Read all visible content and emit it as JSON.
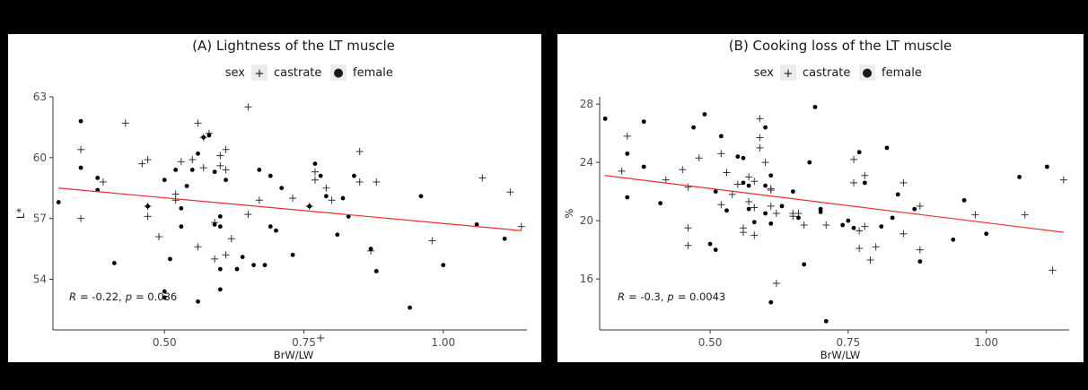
{
  "chart_data": [
    {
      "type": "scatter",
      "title": "(A) Lightness of the LT muscle",
      "xlabel": "BrW/LW",
      "ylabel": "L*",
      "xlim": [
        0.3,
        1.15
      ],
      "ylim": [
        51.5,
        63
      ],
      "xticks": [
        "0.50",
        "0.75",
        "1.00"
      ],
      "xtick_values": [
        0.5,
        0.75,
        1.0
      ],
      "yticks": [
        "54",
        "57",
        "60",
        "63"
      ],
      "ytick_values": [
        54,
        57,
        60,
        63
      ],
      "grid": false,
      "legend": {
        "title": "sex",
        "placement": "top",
        "items": [
          {
            "label": "castrate",
            "marker": "+"
          },
          {
            "label": "female",
            "marker": "●"
          }
        ]
      },
      "annotation": {
        "r_label": "R",
        "r_value": "= -0.22,",
        "p_label": "p",
        "p_value": "= 0.036"
      },
      "regression": {
        "color": "#ee2c2c",
        "x": [
          0.31,
          1.14
        ],
        "y": [
          58.5,
          56.4
        ]
      },
      "series": [
        {
          "name": "castrate",
          "marker": "+",
          "points": [
            [
              0.35,
              57.0
            ],
            [
              0.35,
              60.4
            ],
            [
              0.39,
              58.8
            ],
            [
              0.43,
              61.7
            ],
            [
              0.46,
              59.7
            ],
            [
              0.47,
              59.9
            ],
            [
              0.47,
              57.6
            ],
            [
              0.47,
              57.1
            ],
            [
              0.49,
              56.1
            ],
            [
              0.52,
              58.2
            ],
            [
              0.52,
              57.9
            ],
            [
              0.53,
              59.8
            ],
            [
              0.55,
              59.9
            ],
            [
              0.56,
              55.6
            ],
            [
              0.56,
              61.7
            ],
            [
              0.57,
              59.5
            ],
            [
              0.57,
              61.0
            ],
            [
              0.58,
              61.2
            ],
            [
              0.59,
              56.8
            ],
            [
              0.59,
              55.0
            ],
            [
              0.6,
              59.6
            ],
            [
              0.6,
              60.1
            ],
            [
              0.61,
              60.4
            ],
            [
              0.61,
              59.4
            ],
            [
              0.61,
              55.2
            ],
            [
              0.62,
              56.0
            ],
            [
              0.65,
              62.5
            ],
            [
              0.65,
              57.2
            ],
            [
              0.67,
              57.9
            ],
            [
              0.73,
              58.0
            ],
            [
              0.76,
              57.6
            ],
            [
              0.77,
              59.3
            ],
            [
              0.77,
              58.9
            ],
            [
              0.78,
              51.1
            ],
            [
              0.79,
              58.5
            ],
            [
              0.8,
              57.9
            ],
            [
              0.85,
              58.8
            ],
            [
              0.85,
              60.3
            ],
            [
              0.87,
              55.4
            ],
            [
              0.88,
              58.8
            ],
            [
              0.98,
              55.9
            ],
            [
              1.07,
              59.0
            ],
            [
              1.12,
              58.3
            ],
            [
              1.14,
              56.6
            ]
          ]
        },
        {
          "name": "female",
          "marker": "●",
          "points": [
            [
              0.31,
              57.8
            ],
            [
              0.35,
              61.8
            ],
            [
              0.35,
              59.5
            ],
            [
              0.38,
              59.0
            ],
            [
              0.38,
              58.4
            ],
            [
              0.41,
              54.8
            ],
            [
              0.47,
              57.6
            ],
            [
              0.5,
              58.9
            ],
            [
              0.5,
              53.4
            ],
            [
              0.5,
              53.1
            ],
            [
              0.51,
              55.0
            ],
            [
              0.52,
              59.4
            ],
            [
              0.53,
              57.5
            ],
            [
              0.53,
              56.6
            ],
            [
              0.54,
              58.6
            ],
            [
              0.55,
              59.4
            ],
            [
              0.56,
              60.2
            ],
            [
              0.56,
              52.9
            ],
            [
              0.57,
              61.0
            ],
            [
              0.58,
              61.1
            ],
            [
              0.59,
              56.7
            ],
            [
              0.59,
              59.3
            ],
            [
              0.6,
              57.1
            ],
            [
              0.6,
              56.6
            ],
            [
              0.6,
              54.5
            ],
            [
              0.6,
              53.5
            ],
            [
              0.61,
              58.9
            ],
            [
              0.63,
              54.5
            ],
            [
              0.64,
              55.1
            ],
            [
              0.66,
              54.7
            ],
            [
              0.67,
              59.4
            ],
            [
              0.68,
              54.7
            ],
            [
              0.69,
              59.1
            ],
            [
              0.69,
              56.6
            ],
            [
              0.7,
              56.4
            ],
            [
              0.71,
              58.5
            ],
            [
              0.73,
              55.2
            ],
            [
              0.76,
              57.6
            ],
            [
              0.77,
              59.7
            ],
            [
              0.78,
              59.1
            ],
            [
              0.79,
              58.1
            ],
            [
              0.81,
              56.2
            ],
            [
              0.82,
              58.0
            ],
            [
              0.83,
              57.1
            ],
            [
              0.84,
              59.1
            ],
            [
              0.87,
              55.5
            ],
            [
              0.88,
              54.4
            ],
            [
              0.94,
              52.6
            ],
            [
              0.96,
              58.1
            ],
            [
              1.0,
              54.7
            ],
            [
              1.06,
              56.7
            ],
            [
              1.11,
              56.0
            ]
          ]
        }
      ]
    },
    {
      "type": "scatter",
      "title": "(B) Cooking loss of the LT muscle",
      "xlabel": "BrW/LW",
      "ylabel": "%",
      "xlim": [
        0.3,
        1.15
      ],
      "ylim": [
        12.5,
        28.5
      ],
      "xticks": [
        "0.50",
        "0.75",
        "1.00"
      ],
      "xtick_values": [
        0.5,
        0.75,
        1.0
      ],
      "yticks": [
        "16",
        "20",
        "24",
        "28"
      ],
      "ytick_values": [
        16,
        20,
        24,
        28
      ],
      "grid": false,
      "legend": {
        "title": "sex",
        "placement": "top",
        "items": [
          {
            "label": "castrate",
            "marker": "+"
          },
          {
            "label": "female",
            "marker": "●"
          }
        ]
      },
      "annotation": {
        "r_label": "R",
        "r_value": "= -0.3,",
        "p_label": "p",
        "p_value": "= 0.0043"
      },
      "regression": {
        "color": "#ee2c2c",
        "x": [
          0.31,
          1.14
        ],
        "y": [
          23.1,
          19.2
        ]
      },
      "series": [
        {
          "name": "castrate",
          "marker": "+",
          "points": [
            [
              0.34,
              23.4
            ],
            [
              0.35,
              25.8
            ],
            [
              0.42,
              22.8
            ],
            [
              0.45,
              23.5
            ],
            [
              0.46,
              22.3
            ],
            [
              0.46,
              19.5
            ],
            [
              0.46,
              18.3
            ],
            [
              0.48,
              24.3
            ],
            [
              0.52,
              21.1
            ],
            [
              0.52,
              24.6
            ],
            [
              0.53,
              23.3
            ],
            [
              0.54,
              21.8
            ],
            [
              0.55,
              22.5
            ],
            [
              0.56,
              19.5
            ],
            [
              0.56,
              19.2
            ],
            [
              0.57,
              23.0
            ],
            [
              0.57,
              21.3
            ],
            [
              0.58,
              22.7
            ],
            [
              0.58,
              20.9
            ],
            [
              0.58,
              19.0
            ],
            [
              0.59,
              27.0
            ],
            [
              0.59,
              25.7
            ],
            [
              0.59,
              25.0
            ],
            [
              0.6,
              24.0
            ],
            [
              0.61,
              22.2
            ],
            [
              0.61,
              22.1
            ],
            [
              0.61,
              21.0
            ],
            [
              0.62,
              20.5
            ],
            [
              0.62,
              15.7
            ],
            [
              0.65,
              20.3
            ],
            [
              0.65,
              20.5
            ],
            [
              0.66,
              20.5
            ],
            [
              0.67,
              19.7
            ],
            [
              0.71,
              19.7
            ],
            [
              0.76,
              24.2
            ],
            [
              0.76,
              22.6
            ],
            [
              0.77,
              19.3
            ],
            [
              0.77,
              18.1
            ],
            [
              0.78,
              23.1
            ],
            [
              0.78,
              19.6
            ],
            [
              0.79,
              17.3
            ],
            [
              0.8,
              18.2
            ],
            [
              0.85,
              19.1
            ],
            [
              0.85,
              22.6
            ],
            [
              0.88,
              21.0
            ],
            [
              0.88,
              18.0
            ],
            [
              0.98,
              20.4
            ],
            [
              1.07,
              20.4
            ],
            [
              1.12,
              16.6
            ],
            [
              1.14,
              22.8
            ]
          ]
        },
        {
          "name": "female",
          "marker": "●",
          "points": [
            [
              0.31,
              27.0
            ],
            [
              0.35,
              24.6
            ],
            [
              0.35,
              21.6
            ],
            [
              0.38,
              26.8
            ],
            [
              0.38,
              23.7
            ],
            [
              0.41,
              21.2
            ],
            [
              0.47,
              26.4
            ],
            [
              0.49,
              27.3
            ],
            [
              0.5,
              18.4
            ],
            [
              0.51,
              18.0
            ],
            [
              0.51,
              22.0
            ],
            [
              0.52,
              25.8
            ],
            [
              0.53,
              20.7
            ],
            [
              0.55,
              24.4
            ],
            [
              0.56,
              24.3
            ],
            [
              0.56,
              22.6
            ],
            [
              0.57,
              22.4
            ],
            [
              0.57,
              20.8
            ],
            [
              0.58,
              19.9
            ],
            [
              0.6,
              26.4
            ],
            [
              0.6,
              22.4
            ],
            [
              0.6,
              20.5
            ],
            [
              0.61,
              23.1
            ],
            [
              0.61,
              19.8
            ],
            [
              0.61,
              14.4
            ],
            [
              0.63,
              21.0
            ],
            [
              0.65,
              22.0
            ],
            [
              0.66,
              20.2
            ],
            [
              0.67,
              17.0
            ],
            [
              0.68,
              24.0
            ],
            [
              0.69,
              27.8
            ],
            [
              0.7,
              20.8
            ],
            [
              0.7,
              20.6
            ],
            [
              0.71,
              13.1
            ],
            [
              0.74,
              19.7
            ],
            [
              0.75,
              20.0
            ],
            [
              0.76,
              19.5
            ],
            [
              0.77,
              24.7
            ],
            [
              0.78,
              22.6
            ],
            [
              0.81,
              19.6
            ],
            [
              0.82,
              25.0
            ],
            [
              0.83,
              20.2
            ],
            [
              0.84,
              21.8
            ],
            [
              0.87,
              20.8
            ],
            [
              0.88,
              17.2
            ],
            [
              0.94,
              18.7
            ],
            [
              0.96,
              21.4
            ],
            [
              1.0,
              19.1
            ],
            [
              1.06,
              23.0
            ],
            [
              1.11,
              23.7
            ]
          ]
        }
      ]
    }
  ]
}
